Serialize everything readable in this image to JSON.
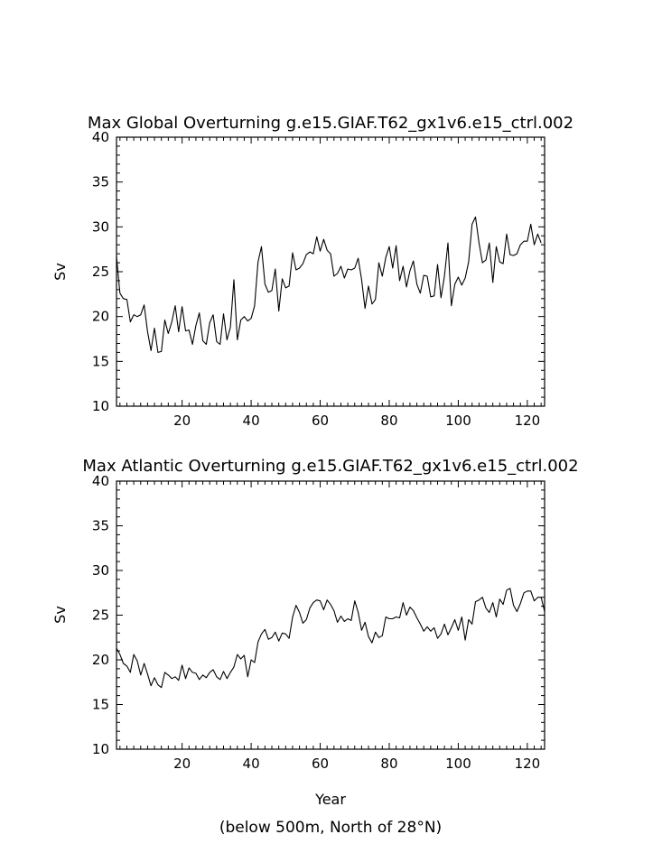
{
  "figure": {
    "xlabel": "Year",
    "footnote": "(below 500m, North of 28°N)",
    "line_color": "#000000",
    "background": "#ffffff"
  },
  "chart_data": [
    {
      "type": "line",
      "title": "Max Global Overturning g.e15.GIAF.T62_gx1v6.e15_ctrl.002",
      "xlabel": "",
      "ylabel": "Sv",
      "xlim": [
        1,
        125
      ],
      "ylim": [
        10,
        40
      ],
      "xticks": [
        20,
        40,
        60,
        80,
        100,
        120
      ],
      "yticks": [
        10,
        15,
        20,
        25,
        30,
        35,
        40
      ],
      "grid": false,
      "x_start": 1,
      "values": [
        26.7,
        22.6,
        22.0,
        21.9,
        19.4,
        20.2,
        20.0,
        20.2,
        21.3,
        18.3,
        16.2,
        18.7,
        16.0,
        16.1,
        19.6,
        18.1,
        19.4,
        21.2,
        18.3,
        21.1,
        18.4,
        18.5,
        16.9,
        19.0,
        20.4,
        17.3,
        16.9,
        19.3,
        20.2,
        17.2,
        16.9,
        20.3,
        17.4,
        18.8,
        24.1,
        17.4,
        19.6,
        20.0,
        19.5,
        19.8,
        21.2,
        26.1,
        27.8,
        23.6,
        22.7,
        22.9,
        25.3,
        20.6,
        24.2,
        23.2,
        23.4,
        27.1,
        25.2,
        25.4,
        25.9,
        26.9,
        27.2,
        27.0,
        28.9,
        27.3,
        28.6,
        27.4,
        27.0,
        24.5,
        24.8,
        25.6,
        24.3,
        25.3,
        25.2,
        25.4,
        26.5,
        24.1,
        20.9,
        23.4,
        21.4,
        21.9,
        26.0,
        24.5,
        26.6,
        27.8,
        25.4,
        27.9,
        24.0,
        25.6,
        23.3,
        25.1,
        26.2,
        23.6,
        22.6,
        24.6,
        24.5,
        22.2,
        22.3,
        25.8,
        22.1,
        24.5,
        28.2,
        21.2,
        23.6,
        24.4,
        23.5,
        24.3,
        26.1,
        30.3,
        31.1,
        28.2,
        26.0,
        26.3,
        28.2,
        23.8,
        27.8,
        26.1,
        25.9,
        29.2,
        26.9,
        26.8,
        27.0,
        28.0,
        28.4,
        28.4,
        30.3,
        28.0,
        29.2,
        28.2
      ]
    },
    {
      "type": "line",
      "title": "Max Atlantic Overturning g.e15.GIAF.T62_gx1v6.e15_ctrl.002",
      "xlabel": "Year",
      "ylabel": "Sv",
      "xlim": [
        1,
        125
      ],
      "ylim": [
        10,
        40
      ],
      "xticks": [
        20,
        40,
        60,
        80,
        100,
        120
      ],
      "yticks": [
        10,
        15,
        20,
        25,
        30,
        35,
        40
      ],
      "grid": false,
      "x_start": 1,
      "values": [
        21.3,
        20.6,
        19.6,
        19.3,
        18.6,
        20.6,
        19.9,
        18.3,
        19.6,
        18.4,
        17.1,
        18.0,
        17.2,
        16.9,
        18.6,
        18.3,
        17.9,
        18.1,
        17.7,
        19.4,
        17.9,
        19.1,
        18.6,
        18.5,
        17.8,
        18.3,
        18.0,
        18.6,
        18.9,
        18.1,
        17.8,
        18.7,
        17.9,
        18.6,
        19.2,
        20.6,
        20.1,
        20.5,
        18.1,
        20.0,
        19.7,
        22.0,
        22.9,
        23.4,
        22.3,
        22.5,
        23.1,
        22.1,
        23.0,
        22.9,
        22.4,
        24.8,
        26.1,
        25.3,
        24.1,
        24.5,
        25.8,
        26.4,
        26.7,
        26.6,
        25.6,
        26.7,
        26.2,
        25.5,
        24.2,
        24.9,
        24.3,
        24.6,
        24.4,
        26.6,
        25.3,
        23.3,
        24.2,
        22.6,
        21.9,
        23.1,
        22.5,
        22.7,
        24.8,
        24.6,
        24.6,
        24.8,
        24.7,
        26.4,
        25.0,
        25.9,
        25.5,
        24.7,
        24.0,
        23.2,
        23.7,
        23.2,
        23.6,
        22.4,
        22.9,
        24.0,
        22.8,
        23.6,
        24.5,
        23.3,
        24.8,
        22.2,
        24.5,
        24.0,
        26.5,
        26.7,
        27.0,
        25.8,
        25.3,
        26.4,
        24.8,
        26.8,
        26.2,
        27.8,
        28.0,
        26.1,
        25.4,
        26.3,
        27.5,
        27.7,
        27.7,
        26.6,
        27.0,
        27.0,
        25.4
      ]
    }
  ]
}
